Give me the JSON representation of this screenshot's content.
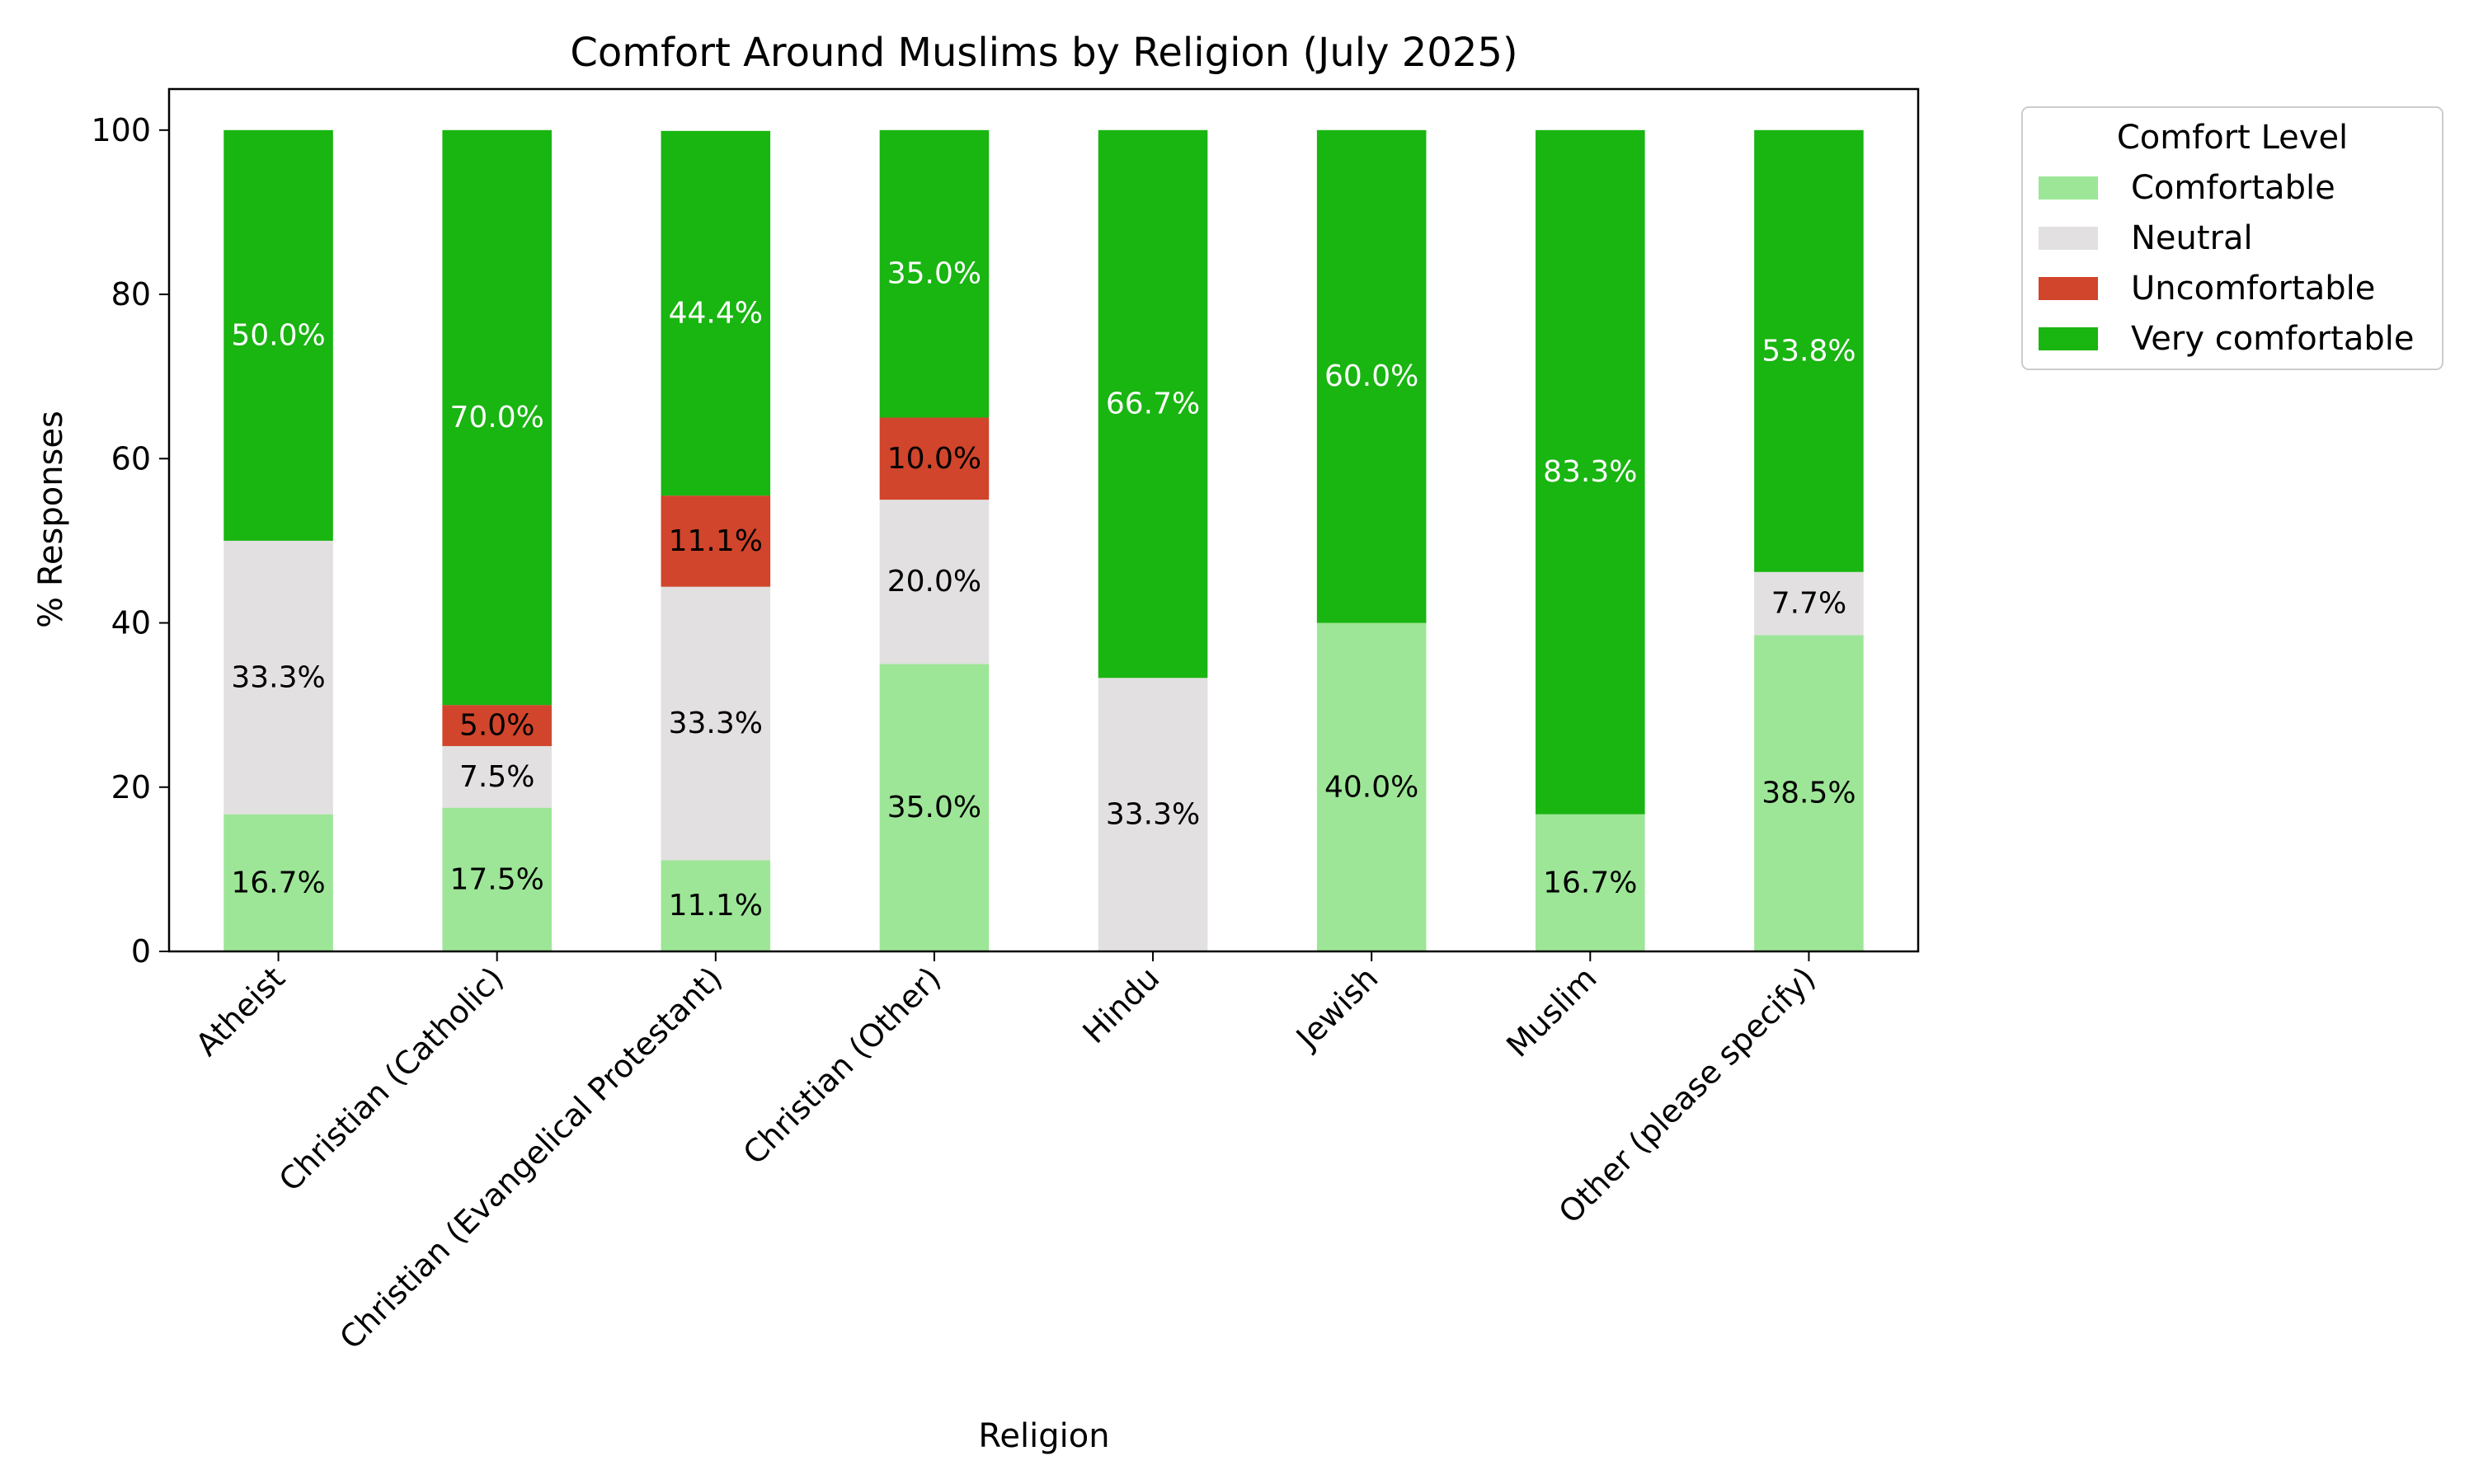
{
  "chart_data": {
    "type": "bar",
    "stacked": true,
    "title": "Comfort Around Muslims by Religion (July 2025)",
    "xlabel": "Religion",
    "ylabel": "% Responses",
    "ylim": [
      0,
      105
    ],
    "yticks": [
      0,
      20,
      40,
      60,
      80,
      100
    ],
    "categories": [
      "Atheist",
      "Christian (Catholic)",
      "Christian (Evangelical Protestant)",
      "Christian (Other)",
      "Hindu",
      "Jewish",
      "Muslim",
      "Other (please specify)"
    ],
    "series": [
      {
        "name": "Comfortable",
        "color": "#9de697",
        "label_color": "#000000",
        "values": [
          16.7,
          17.5,
          11.1,
          35.0,
          0,
          40.0,
          16.7,
          38.5
        ]
      },
      {
        "name": "Neutral",
        "color": "#e2e0e0",
        "label_color": "#000000",
        "values": [
          33.3,
          7.5,
          33.3,
          20.0,
          33.3,
          0,
          0,
          7.7
        ]
      },
      {
        "name": "Uncomfortable",
        "color": "#d0452b",
        "label_color": "#000000",
        "values": [
          0,
          5.0,
          11.1,
          10.0,
          0,
          0,
          0,
          0
        ]
      },
      {
        "name": "Very comfortable",
        "color": "#19b511",
        "label_color": "#ffffff",
        "values": [
          50.0,
          70.0,
          44.4,
          35.0,
          66.7,
          60.0,
          83.3,
          53.8
        ]
      }
    ],
    "legend": {
      "title": "Comfort Level",
      "placement": "outside-top-right"
    },
    "grid": false
  }
}
